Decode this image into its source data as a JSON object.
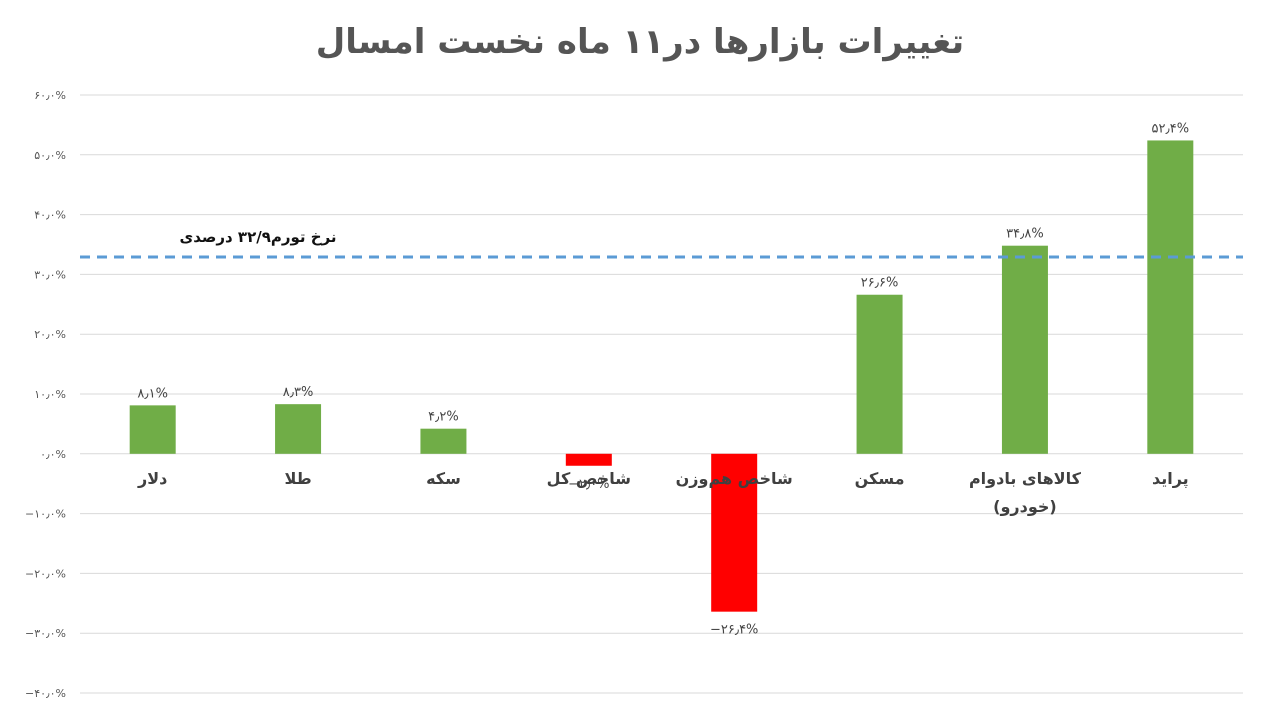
{
  "chart_data": {
    "type": "bar",
    "title": "تغییرات بازارها در۱۱ ماه نخست امسال",
    "categories": [
      [
        "دلار"
      ],
      [
        "طلا"
      ],
      [
        "سکه"
      ],
      [
        "شاخص کل"
      ],
      [
        "شاخص هم‌وزن"
      ],
      [
        "مسکن"
      ],
      [
        "کالاهای بادوام",
        "(خودرو)"
      ],
      [
        "پراید"
      ]
    ],
    "values": [
      8.1,
      8.3,
      4.2,
      -2.0,
      -26.4,
      26.6,
      34.8,
      52.4
    ],
    "value_labels": [
      "۸٫۱%",
      "۸٫۳%",
      "۴٫۲%",
      "−۲٫۰%",
      "−۲۶٫۴%",
      "۲۶٫۶%",
      "۳۴٫۸%",
      "۵۲٫۴%"
    ],
    "ylim": [
      -40,
      60
    ],
    "yticks": [
      60,
      50,
      40,
      30,
      20,
      10,
      0,
      -10,
      -20,
      -30,
      -40
    ],
    "ytick_labels": [
      "۶۰٫۰%",
      "۵۰٫۰%",
      "۴۰٫۰%",
      "۳۰٫۰%",
      "۲۰٫۰%",
      "۱۰٫۰%",
      "۰٫۰%",
      "−۱۰٫۰%",
      "−۲۰٫۰%",
      "−۳۰٫۰%",
      "−۴۰٫۰%"
    ],
    "reference_line": {
      "value": 32.9,
      "label": "نرخ تورم۳۲/۹ درصدی",
      "color": "#5b9bd5"
    },
    "grid": true,
    "colors": {
      "positive": "#70ad47",
      "negative": "#ff0000",
      "grid": "#d9d9d9"
    }
  }
}
